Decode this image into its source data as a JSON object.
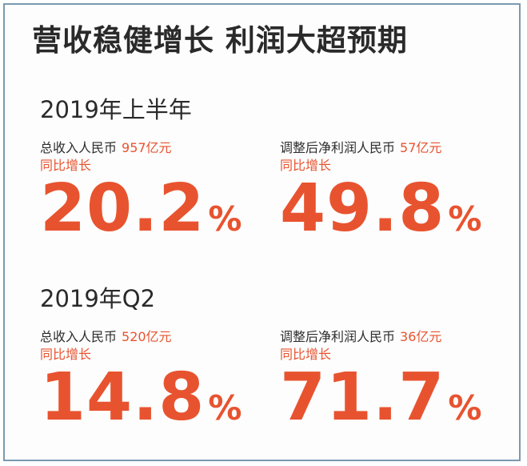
{
  "headline": "营收稳健增长 利润大超预期",
  "sections": [
    {
      "title": "2019年上半年",
      "metrics": [
        {
          "label": "总收入人民币",
          "amount": "957亿元",
          "sub": "同比增长",
          "value": "20.2",
          "unit": "%"
        },
        {
          "label": "调整后净利润人民币",
          "amount": "57亿元",
          "sub": "同比增长",
          "value": "49.8",
          "unit": "%"
        }
      ]
    },
    {
      "title": "2019年Q2",
      "metrics": [
        {
          "label": "总收入人民币",
          "amount": "520亿元",
          "sub": "同比增长",
          "value": "14.8",
          "unit": "%"
        },
        {
          "label": "调整后净利润人民币",
          "amount": "36亿元",
          "sub": "同比增长",
          "value": "71.7",
          "unit": "%"
        }
      ]
    }
  ],
  "colors": {
    "accent": "#e8532f",
    "text": "#2a2a2a",
    "frame": "#7a9ab0"
  }
}
